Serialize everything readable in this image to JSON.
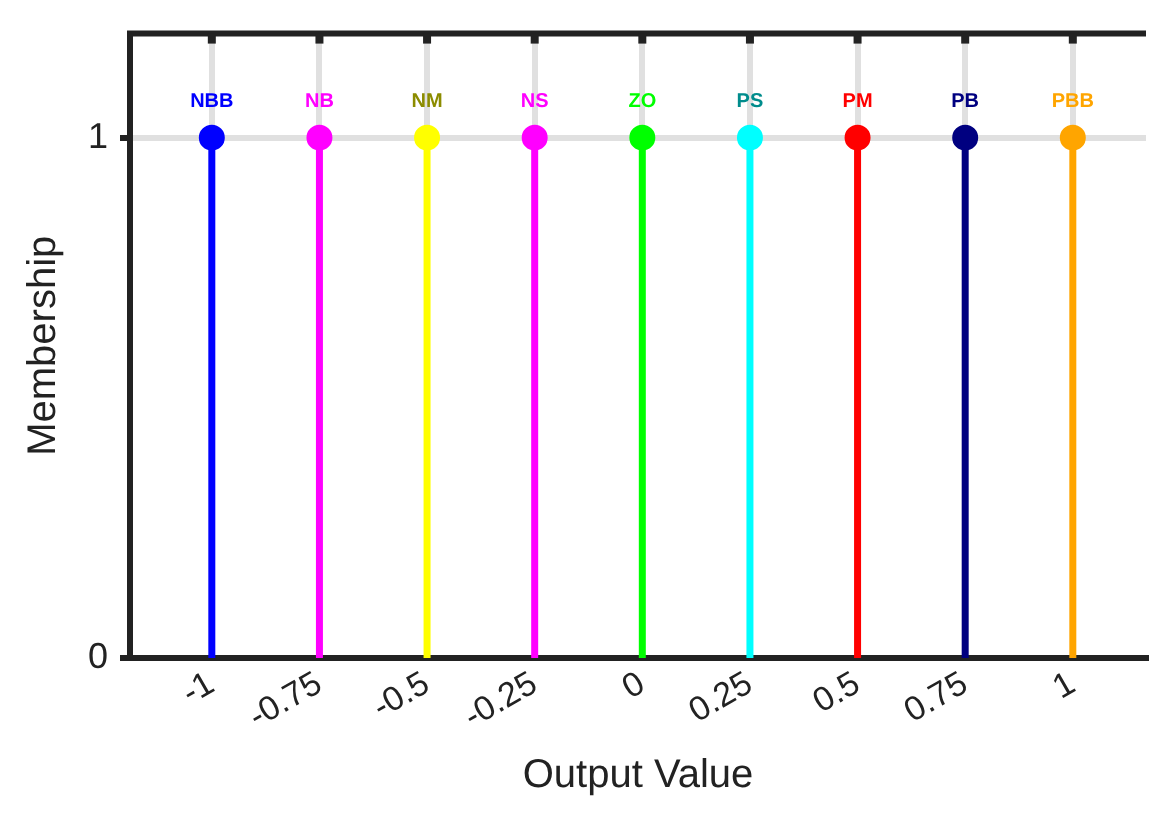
{
  "chart_data": {
    "type": "lollipop",
    "xlabel": "Output Value",
    "ylabel": "Membership",
    "xlim": [
      -1.19,
      1.17
    ],
    "ylim": [
      0,
      1.2
    ],
    "xticks": [
      -1,
      -0.75,
      -0.5,
      -0.25,
      0,
      0.25,
      0.5,
      0.75,
      1
    ],
    "yticks": [
      0,
      1
    ],
    "grid": true,
    "legend": false,
    "marker": "circle",
    "series": [
      {
        "name": "NBB",
        "color": "#0000ff",
        "x": [
          -1
        ],
        "values": [
          1
        ]
      },
      {
        "name": "NB",
        "color": "#ff00ff",
        "x": [
          -0.75
        ],
        "values": [
          1
        ]
      },
      {
        "name": "NM",
        "color": "#ffff00",
        "x": [
          -0.5
        ],
        "values": [
          1
        ]
      },
      {
        "name": "NS",
        "color": "#ff00ff",
        "x": [
          -0.25
        ],
        "values": [
          1
        ]
      },
      {
        "name": "ZO",
        "color": "#00ff00",
        "x": [
          0
        ],
        "values": [
          1
        ]
      },
      {
        "name": "PS",
        "color": "#00ffff",
        "x": [
          0.25
        ],
        "values": [
          1
        ]
      },
      {
        "name": "PM",
        "color": "#ff0000",
        "x": [
          0.5
        ],
        "values": [
          1
        ]
      },
      {
        "name": "PB",
        "color": "#000080",
        "x": [
          0.75
        ],
        "values": [
          1
        ]
      },
      {
        "name": "PBB",
        "color": "#ffa500",
        "x": [
          1
        ],
        "values": [
          1
        ]
      }
    ]
  }
}
